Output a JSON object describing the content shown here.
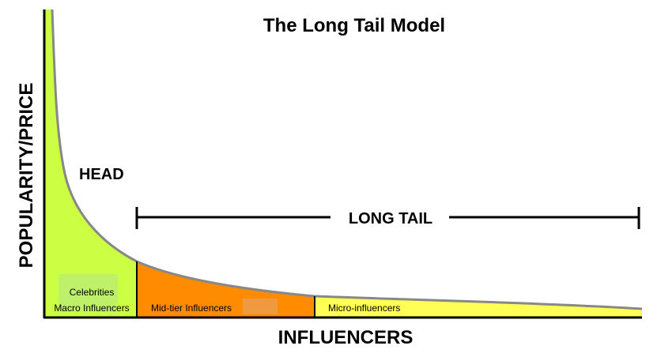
{
  "diagram": {
    "title": "The Long Tail Model",
    "x_axis_label": "INFLUENCERS",
    "y_axis_label": "POPULARITY/PRICE",
    "head_label": "HEAD",
    "long_tail_label": "LONG TAIL",
    "segments": [
      {
        "lines": [
          "Celebrities",
          "Macro Influencers"
        ],
        "color": "#ccff44"
      },
      {
        "lines": [
          "Mid-tier Influencers"
        ],
        "color": "#ff8c00"
      },
      {
        "lines": [
          "Micro-influencers"
        ],
        "color": "#ffff55"
      }
    ],
    "colors": {
      "curve": "#888888",
      "axis": "#000000",
      "divider": "#000000",
      "head_label_box": "#bff06a",
      "mid_label_box": "#ef9a40"
    }
  }
}
